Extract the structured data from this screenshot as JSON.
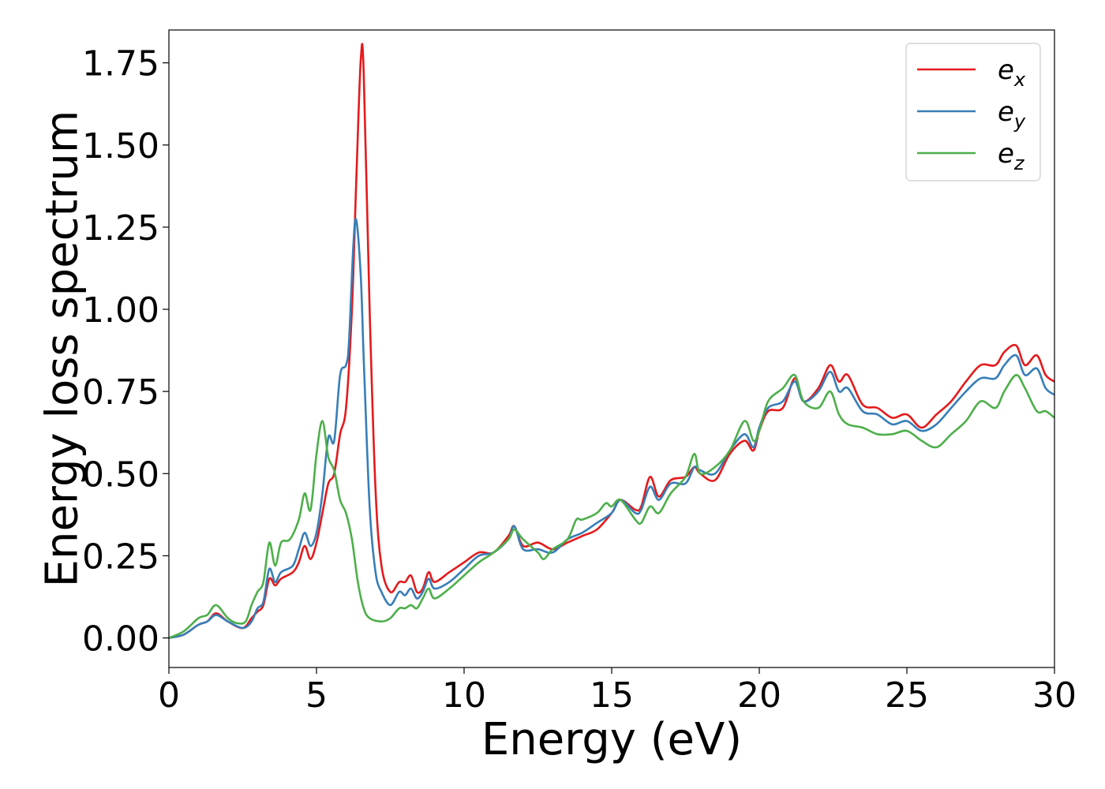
{
  "chart_data": {
    "type": "line",
    "title": "",
    "xlabel": "Energy (eV)",
    "ylabel": "Energy loss spectrum",
    "xlim": [
      0,
      30
    ],
    "ylim": [
      -0.09,
      1.85
    ],
    "xticks": [
      0,
      5,
      10,
      15,
      20,
      25,
      30
    ],
    "xtick_labels": [
      "0",
      "5",
      "10",
      "15",
      "20",
      "25",
      "30"
    ],
    "yticks": [
      0.0,
      0.25,
      0.5,
      0.75,
      1.0,
      1.25,
      1.5,
      1.75
    ],
    "ytick_labels": [
      "0.00",
      "0.25",
      "0.50",
      "0.75",
      "1.00",
      "1.25",
      "1.50",
      "1.75"
    ],
    "grid": false,
    "legend_position": "top-right",
    "series": [
      {
        "name": "e_x",
        "legend_base": "e",
        "legend_sub": "x",
        "color": "#e41a1c",
        "points": [
          [
            0,
            0
          ],
          [
            0.5,
            0.01
          ],
          [
            1,
            0.04
          ],
          [
            1.3,
            0.05
          ],
          [
            1.6,
            0.075
          ],
          [
            2,
            0.05
          ],
          [
            2.5,
            0.03
          ],
          [
            2.8,
            0.06
          ],
          [
            3,
            0.08
          ],
          [
            3.2,
            0.1
          ],
          [
            3.4,
            0.18
          ],
          [
            3.6,
            0.16
          ],
          [
            3.8,
            0.18
          ],
          [
            4.2,
            0.2
          ],
          [
            4.4,
            0.23
          ],
          [
            4.6,
            0.28
          ],
          [
            4.8,
            0.24
          ],
          [
            5,
            0.29
          ],
          [
            5.2,
            0.38
          ],
          [
            5.4,
            0.47
          ],
          [
            5.6,
            0.5
          ],
          [
            5.8,
            0.62
          ],
          [
            6,
            0.7
          ],
          [
            6.2,
            1.0
          ],
          [
            6.35,
            1.4
          ],
          [
            6.5,
            1.76
          ],
          [
            6.6,
            1.72
          ],
          [
            6.8,
            1.0
          ],
          [
            7,
            0.45
          ],
          [
            7.2,
            0.22
          ],
          [
            7.5,
            0.14
          ],
          [
            7.8,
            0.17
          ],
          [
            8,
            0.17
          ],
          [
            8.2,
            0.19
          ],
          [
            8.4,
            0.14
          ],
          [
            8.6,
            0.15
          ],
          [
            8.8,
            0.2
          ],
          [
            9,
            0.17
          ],
          [
            9.5,
            0.2
          ],
          [
            10,
            0.23
          ],
          [
            10.5,
            0.26
          ],
          [
            11,
            0.26
          ],
          [
            11.5,
            0.31
          ],
          [
            11.7,
            0.34
          ],
          [
            12,
            0.28
          ],
          [
            12.5,
            0.29
          ],
          [
            13,
            0.27
          ],
          [
            13.5,
            0.29
          ],
          [
            14,
            0.31
          ],
          [
            14.5,
            0.33
          ],
          [
            15,
            0.38
          ],
          [
            15.3,
            0.42
          ],
          [
            15.8,
            0.39
          ],
          [
            16,
            0.4
          ],
          [
            16.3,
            0.49
          ],
          [
            16.6,
            0.43
          ],
          [
            17,
            0.48
          ],
          [
            17.5,
            0.49
          ],
          [
            17.8,
            0.52
          ],
          [
            18,
            0.5
          ],
          [
            18.5,
            0.48
          ],
          [
            19,
            0.56
          ],
          [
            19.5,
            0.6
          ],
          [
            19.8,
            0.57
          ],
          [
            20,
            0.63
          ],
          [
            20.3,
            0.69
          ],
          [
            20.8,
            0.7
          ],
          [
            21.2,
            0.79
          ],
          [
            21.5,
            0.72
          ],
          [
            22,
            0.76
          ],
          [
            22.4,
            0.83
          ],
          [
            22.7,
            0.78
          ],
          [
            23,
            0.8
          ],
          [
            23.5,
            0.71
          ],
          [
            24,
            0.7
          ],
          [
            24.5,
            0.67
          ],
          [
            25,
            0.68
          ],
          [
            25.5,
            0.64
          ],
          [
            26,
            0.68
          ],
          [
            26.5,
            0.72
          ],
          [
            27,
            0.78
          ],
          [
            27.5,
            0.83
          ],
          [
            28,
            0.83
          ],
          [
            28.3,
            0.87
          ],
          [
            28.7,
            0.89
          ],
          [
            29,
            0.83
          ],
          [
            29.4,
            0.86
          ],
          [
            29.7,
            0.8
          ],
          [
            30,
            0.78
          ]
        ]
      },
      {
        "name": "e_y",
        "legend_base": "e",
        "legend_sub": "y",
        "color": "#377eb8",
        "points": [
          [
            0,
            0
          ],
          [
            0.5,
            0.01
          ],
          [
            1,
            0.04
          ],
          [
            1.3,
            0.05
          ],
          [
            1.6,
            0.07
          ],
          [
            2,
            0.05
          ],
          [
            2.5,
            0.03
          ],
          [
            2.8,
            0.05
          ],
          [
            3,
            0.09
          ],
          [
            3.2,
            0.11
          ],
          [
            3.4,
            0.21
          ],
          [
            3.6,
            0.17
          ],
          [
            3.8,
            0.2
          ],
          [
            4.2,
            0.22
          ],
          [
            4.4,
            0.27
          ],
          [
            4.6,
            0.32
          ],
          [
            4.8,
            0.28
          ],
          [
            5,
            0.32
          ],
          [
            5.2,
            0.44
          ],
          [
            5.4,
            0.61
          ],
          [
            5.6,
            0.6
          ],
          [
            5.8,
            0.8
          ],
          [
            6,
            0.83
          ],
          [
            6.1,
            0.9
          ],
          [
            6.25,
            1.2
          ],
          [
            6.35,
            1.27
          ],
          [
            6.5,
            1.1
          ],
          [
            6.6,
            0.85
          ],
          [
            6.8,
            0.4
          ],
          [
            7,
            0.2
          ],
          [
            7.2,
            0.14
          ],
          [
            7.5,
            0.1
          ],
          [
            7.8,
            0.14
          ],
          [
            8,
            0.13
          ],
          [
            8.2,
            0.15
          ],
          [
            8.4,
            0.12
          ],
          [
            8.6,
            0.14
          ],
          [
            8.8,
            0.18
          ],
          [
            9,
            0.15
          ],
          [
            9.5,
            0.17
          ],
          [
            10,
            0.21
          ],
          [
            10.5,
            0.25
          ],
          [
            11,
            0.26
          ],
          [
            11.5,
            0.3
          ],
          [
            11.7,
            0.34
          ],
          [
            12,
            0.27
          ],
          [
            12.5,
            0.27
          ],
          [
            13,
            0.26
          ],
          [
            13.5,
            0.3
          ],
          [
            14,
            0.32
          ],
          [
            14.5,
            0.35
          ],
          [
            15,
            0.38
          ],
          [
            15.3,
            0.42
          ],
          [
            15.8,
            0.38
          ],
          [
            16,
            0.39
          ],
          [
            16.3,
            0.46
          ],
          [
            16.6,
            0.42
          ],
          [
            17,
            0.47
          ],
          [
            17.5,
            0.47
          ],
          [
            17.8,
            0.52
          ],
          [
            18,
            0.51
          ],
          [
            18.5,
            0.5
          ],
          [
            19,
            0.57
          ],
          [
            19.5,
            0.62
          ],
          [
            19.8,
            0.58
          ],
          [
            20,
            0.64
          ],
          [
            20.3,
            0.7
          ],
          [
            20.8,
            0.72
          ],
          [
            21.2,
            0.78
          ],
          [
            21.5,
            0.72
          ],
          [
            22,
            0.75
          ],
          [
            22.4,
            0.81
          ],
          [
            22.7,
            0.75
          ],
          [
            23,
            0.76
          ],
          [
            23.5,
            0.69
          ],
          [
            24,
            0.68
          ],
          [
            24.5,
            0.65
          ],
          [
            25,
            0.66
          ],
          [
            25.5,
            0.63
          ],
          [
            26,
            0.65
          ],
          [
            26.5,
            0.7
          ],
          [
            27,
            0.75
          ],
          [
            27.5,
            0.79
          ],
          [
            28,
            0.79
          ],
          [
            28.3,
            0.83
          ],
          [
            28.7,
            0.86
          ],
          [
            29,
            0.8
          ],
          [
            29.4,
            0.82
          ],
          [
            29.7,
            0.76
          ],
          [
            30,
            0.74
          ]
        ]
      },
      {
        "name": "e_z",
        "legend_base": "e",
        "legend_sub": "z",
        "color": "#4daf4a",
        "points": [
          [
            0,
            0
          ],
          [
            0.5,
            0.02
          ],
          [
            1,
            0.06
          ],
          [
            1.3,
            0.07
          ],
          [
            1.6,
            0.1
          ],
          [
            2,
            0.06
          ],
          [
            2.3,
            0.045
          ],
          [
            2.6,
            0.05
          ],
          [
            2.8,
            0.1
          ],
          [
            3,
            0.14
          ],
          [
            3.2,
            0.17
          ],
          [
            3.4,
            0.29
          ],
          [
            3.6,
            0.22
          ],
          [
            3.8,
            0.29
          ],
          [
            4.1,
            0.3
          ],
          [
            4.4,
            0.36
          ],
          [
            4.6,
            0.44
          ],
          [
            4.8,
            0.39
          ],
          [
            5,
            0.56
          ],
          [
            5.2,
            0.66
          ],
          [
            5.4,
            0.55
          ],
          [
            5.6,
            0.51
          ],
          [
            5.8,
            0.42
          ],
          [
            6,
            0.38
          ],
          [
            6.2,
            0.3
          ],
          [
            6.4,
            0.17
          ],
          [
            6.6,
            0.09
          ],
          [
            6.8,
            0.06
          ],
          [
            7.2,
            0.05
          ],
          [
            7.5,
            0.06
          ],
          [
            7.8,
            0.09
          ],
          [
            8,
            0.09
          ],
          [
            8.2,
            0.1
          ],
          [
            8.4,
            0.09
          ],
          [
            8.6,
            0.12
          ],
          [
            8.8,
            0.15
          ],
          [
            9,
            0.12
          ],
          [
            9.5,
            0.15
          ],
          [
            10,
            0.19
          ],
          [
            10.5,
            0.23
          ],
          [
            11,
            0.26
          ],
          [
            11.5,
            0.3
          ],
          [
            11.7,
            0.33
          ],
          [
            12,
            0.3
          ],
          [
            12.5,
            0.26
          ],
          [
            12.7,
            0.24
          ],
          [
            13,
            0.27
          ],
          [
            13.5,
            0.3
          ],
          [
            13.8,
            0.36
          ],
          [
            14,
            0.36
          ],
          [
            14.5,
            0.38
          ],
          [
            14.8,
            0.41
          ],
          [
            15,
            0.4
          ],
          [
            15.3,
            0.42
          ],
          [
            15.8,
            0.36
          ],
          [
            16,
            0.35
          ],
          [
            16.3,
            0.4
          ],
          [
            16.6,
            0.38
          ],
          [
            17,
            0.44
          ],
          [
            17.5,
            0.49
          ],
          [
            17.8,
            0.56
          ],
          [
            18,
            0.5
          ],
          [
            18.5,
            0.52
          ],
          [
            19,
            0.57
          ],
          [
            19.5,
            0.66
          ],
          [
            19.8,
            0.6
          ],
          [
            20,
            0.63
          ],
          [
            20.3,
            0.72
          ],
          [
            20.8,
            0.76
          ],
          [
            21.2,
            0.8
          ],
          [
            21.5,
            0.72
          ],
          [
            22,
            0.7
          ],
          [
            22.4,
            0.75
          ],
          [
            22.7,
            0.68
          ],
          [
            23,
            0.65
          ],
          [
            23.5,
            0.64
          ],
          [
            24,
            0.62
          ],
          [
            24.5,
            0.62
          ],
          [
            25,
            0.63
          ],
          [
            25.5,
            0.6
          ],
          [
            26,
            0.58
          ],
          [
            26.5,
            0.62
          ],
          [
            27,
            0.66
          ],
          [
            27.5,
            0.72
          ],
          [
            28,
            0.7
          ],
          [
            28.3,
            0.75
          ],
          [
            28.7,
            0.8
          ],
          [
            29,
            0.76
          ],
          [
            29.4,
            0.69
          ],
          [
            29.7,
            0.69
          ],
          [
            30,
            0.67
          ]
        ]
      }
    ]
  }
}
